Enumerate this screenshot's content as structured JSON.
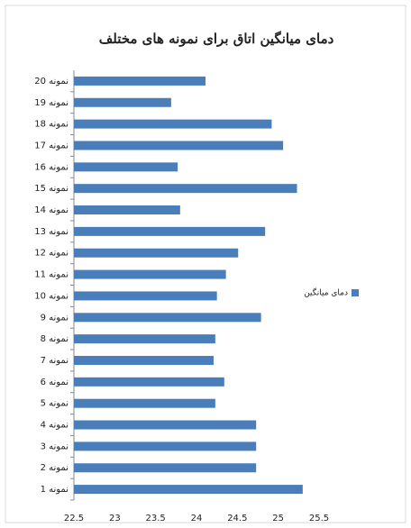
{
  "chart_data": {
    "type": "barh",
    "title": "دمای میانگین اتاق برای نمونه های مختلف",
    "categories": [
      "نمونه 1",
      "نمونه 2",
      "نمونه 3",
      "نمونه 4",
      "نمونه 5",
      "نمونه 6",
      "نمونه 7",
      "نمونه 8",
      "نمونه 9",
      "نمونه 10",
      "نمونه 11",
      "نمونه 12",
      "نمونه 13",
      "نمونه 14",
      "نمونه 15",
      "نمونه 16",
      "نمونه 17",
      "نمونه 18",
      "نمونه 19",
      "نمونه 20"
    ],
    "series": [
      {
        "name": "دمای میانگین",
        "color": "#4a7ebb",
        "values": [
          25.3,
          24.73,
          24.73,
          24.73,
          24.23,
          24.34,
          24.21,
          24.23,
          24.79,
          24.25,
          24.36,
          24.51,
          24.84,
          23.8,
          25.23,
          23.77,
          25.06,
          24.92,
          23.69,
          24.11
        ]
      }
    ],
    "xlim": [
      22.5,
      25.5
    ],
    "xticks": [
      22.5,
      23,
      23.5,
      24,
      24.5,
      25,
      25.5
    ],
    "legend": "right"
  }
}
